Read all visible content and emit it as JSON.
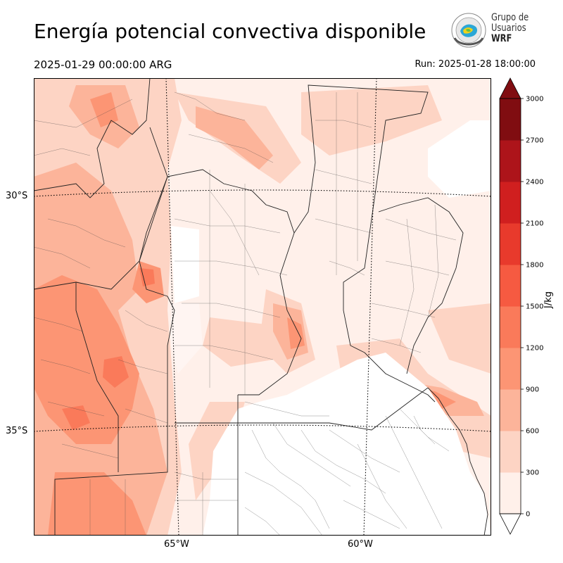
{
  "header": {
    "title": "Energía potencial convectiva disponible",
    "valid_time": "2025-01-29 00:00:00 ARG",
    "run_time": "Run: 2025-01-28 18:00:00"
  },
  "logo": {
    "line1": "Grupo de",
    "line2": "Usuarios",
    "line3": "WRF"
  },
  "map": {
    "lat_labels": [
      "30°S",
      "35°S"
    ],
    "lon_labels": [
      "65°W",
      "60°W"
    ]
  },
  "colorbar": {
    "unit": "J/kg",
    "ticks": [
      "0",
      "300",
      "600",
      "900",
      "1200",
      "1500",
      "1800",
      "2100",
      "2400",
      "2700",
      "3000"
    ],
    "colors": [
      "#fff0ea",
      "#fdd4c4",
      "#fcb49a",
      "#fc9574",
      "#fa7a5a",
      "#f65a41",
      "#e83a2c",
      "#d01f1f",
      "#ad141a",
      "#800d11"
    ]
  }
}
